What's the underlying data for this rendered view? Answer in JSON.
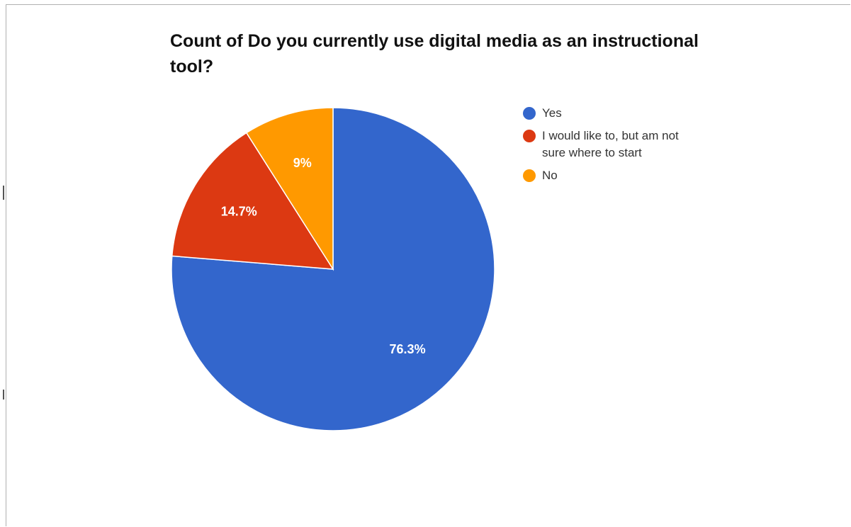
{
  "chart_data": {
    "type": "pie",
    "title": "Count of Do you currently use digital media as an instructional tool?",
    "categories": [
      "Yes",
      "I would like to, but am not sure where to start",
      "No"
    ],
    "values": [
      76.3,
      14.7,
      9
    ],
    "labels": [
      "76.3%",
      "14.7%",
      "9%"
    ],
    "colors": [
      "#3366cc",
      "#dc3912",
      "#ff9900"
    ],
    "legend_position": "right"
  }
}
